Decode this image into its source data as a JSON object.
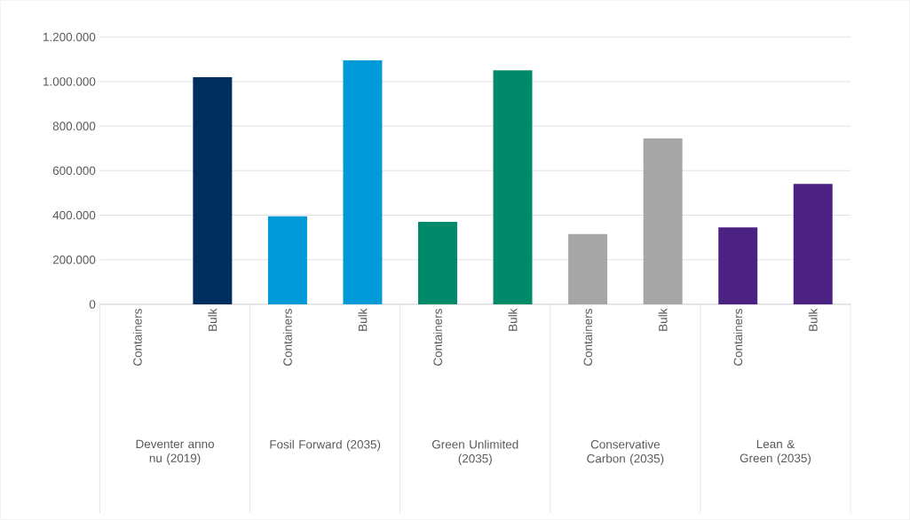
{
  "chart_data": {
    "type": "bar",
    "categories": [
      "Containers",
      "Bulk",
      "Containers",
      "Bulk",
      "Containers",
      "Bulk",
      "Containers",
      "Bulk",
      "Containers",
      "Bulk"
    ],
    "values": [
      null,
      1020000,
      395000,
      1095000,
      370000,
      1050000,
      315000,
      745000,
      345000,
      540000
    ],
    "colors": [
      "#002f5f",
      "#002f5f",
      "#009ad9",
      "#009ad9",
      "#008a6a",
      "#008a6a",
      "#a6a6a6",
      "#a6a6a6",
      "#4b2283",
      "#4b2283"
    ],
    "ylim": [
      0,
      1200000
    ],
    "yticks": [
      {
        "value": 0,
        "label": "0"
      },
      {
        "value": 200000,
        "label": "200.000"
      },
      {
        "value": 400000,
        "label": "400.000"
      },
      {
        "value": 600000,
        "label": "600.000"
      },
      {
        "value": 800000,
        "label": "800.000"
      },
      {
        "value": 1000000,
        "label": "1.000.000"
      },
      {
        "value": 1200000,
        "label": "1.200.000"
      }
    ],
    "grid": "y",
    "annotations": [
      "Deventer anno nu (2019)",
      "Fosil Forward (2035)",
      "Green Unlimited (2035)",
      "Conservative Carbon (2035)",
      "Lean & Green (2035)"
    ]
  }
}
